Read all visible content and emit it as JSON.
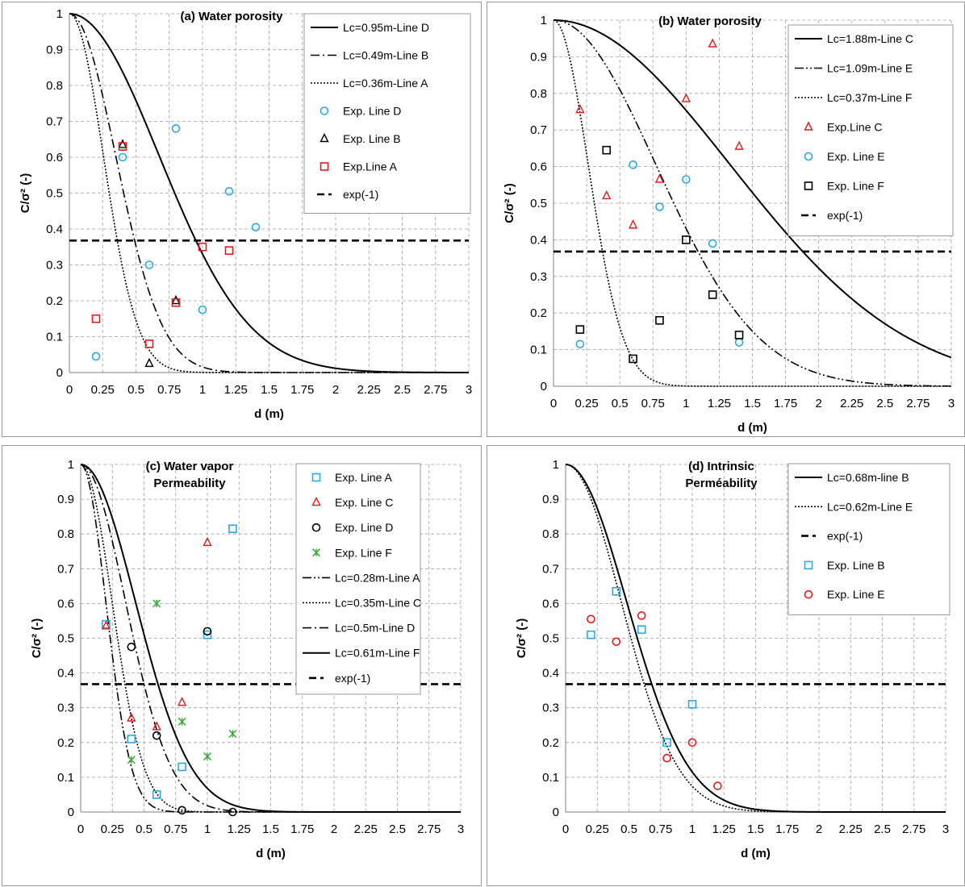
{
  "charts": [
    {
      "id": "a",
      "title_lines": [
        "(a) Water porosity"
      ],
      "chart_data": {
        "type": "line",
        "xlabel": "d (m)",
        "ylabel": "C/σ² (-)",
        "xlim": [
          0,
          3
        ],
        "ylim": [
          0,
          1
        ],
        "xticks": [
          "0",
          "0.25",
          "0.5",
          "0.75",
          "1",
          "1.25",
          "1.5",
          "1.75",
          "2",
          "2.25",
          "2.5",
          "2.75",
          "3"
        ],
        "yticks": [
          "0",
          "0.1",
          "0.2",
          "0.3",
          "0.4",
          "0.5",
          "0.6",
          "0.7",
          "0.8",
          "0.9",
          "1"
        ],
        "grid": true,
        "legend_position": "top-right",
        "curves": [
          {
            "name": "Lc=0.95m-Line D",
            "lc": 0.95,
            "color": "#000000",
            "style": "solid"
          },
          {
            "name": "Lc=0.49m-Line B",
            "lc": 0.49,
            "color": "#000000",
            "style": "dashdot"
          },
          {
            "name": "Lc=0.36m-Line A",
            "lc": 0.36,
            "color": "#000000",
            "style": "dotted"
          }
        ],
        "points": [
          {
            "name": "Exp. Line D",
            "marker": "circle",
            "color": "#29a9e0",
            "x": [
              0.2,
              0.4,
              0.6,
              0.8,
              1.0,
              1.2,
              1.4
            ],
            "y": [
              0.045,
              0.6,
              0.3,
              0.68,
              0.175,
              0.505,
              0.405
            ]
          },
          {
            "name": "Exp. Line B",
            "marker": "triangle",
            "color": "#000000",
            "x": [
              0.4,
              0.6,
              0.8
            ],
            "y": [
              0.635,
              0.025,
              0.2
            ]
          },
          {
            "name": "Exp.Line A",
            "marker": "square",
            "color": "#e41a1c",
            "x": [
              0.2,
              0.4,
              0.6,
              0.8,
              1.0,
              1.2
            ],
            "y": [
              0.15,
              0.63,
              0.08,
              0.195,
              0.35,
              0.34
            ]
          }
        ],
        "reference": {
          "name": "exp(-1)",
          "y": 0.3679
        }
      }
    },
    {
      "id": "b",
      "title_lines": [
        "(b) Water porosity"
      ],
      "chart_data": {
        "type": "line",
        "xlabel": "d (m)",
        "ylabel": "C/σ² (-)",
        "xlim": [
          0,
          3
        ],
        "ylim": [
          0,
          1
        ],
        "xticks": [
          "0",
          "0.25",
          "0.5",
          "0.75",
          "1",
          "1.25",
          "1.5",
          "1.75",
          "2",
          "2.25",
          "2.5",
          "2.75",
          "3"
        ],
        "yticks": [
          "0",
          "0.1",
          "0.2",
          "0.3",
          "0.4",
          "0.5",
          "0.6",
          "0.7",
          "0.8",
          "0.9",
          "1"
        ],
        "grid": true,
        "legend_position": "top-right",
        "curves": [
          {
            "name": "Lc=1.88m-Line C",
            "lc": 1.88,
            "color": "#000000",
            "style": "solid"
          },
          {
            "name": "Lc=1.09m-Line E",
            "lc": 1.09,
            "color": "#000000",
            "style": "dashdotdot"
          },
          {
            "name": "Lc=0.37m-Line F",
            "lc": 0.37,
            "color": "#000000",
            "style": "dotted"
          }
        ],
        "points": [
          {
            "name": "Exp.Line C",
            "marker": "triangle",
            "color": "#e41a1c",
            "x": [
              0.2,
              0.4,
              0.6,
              0.8,
              1.0,
              1.2,
              1.4
            ],
            "y": [
              0.755,
              0.52,
              0.44,
              0.565,
              0.785,
              0.935,
              0.655
            ]
          },
          {
            "name": "Exp. Line E",
            "marker": "circle",
            "color": "#29a9e0",
            "x": [
              0.2,
              0.6,
              0.8,
              1.0,
              1.2,
              1.4
            ],
            "y": [
              0.115,
              0.605,
              0.49,
              0.565,
              0.39,
              0.12
            ]
          },
          {
            "name": "Exp. Line F",
            "marker": "square",
            "color": "#000000",
            "x": [
              0.2,
              0.4,
              0.6,
              0.8,
              1.0,
              1.2,
              1.4
            ],
            "y": [
              0.155,
              0.645,
              0.075,
              0.18,
              0.4,
              0.25,
              0.14
            ]
          }
        ],
        "reference": {
          "name": "exp(-1)",
          "y": 0.3679
        }
      }
    },
    {
      "id": "c",
      "title_lines": [
        "(c) Water vapor",
        "Permeability"
      ],
      "chart_data": {
        "type": "line",
        "xlabel": "d (m)",
        "ylabel": "C/σ² (-)",
        "xlim": [
          0,
          3
        ],
        "ylim": [
          0,
          1
        ],
        "xticks": [
          "0",
          "0.25",
          "0.5",
          "0.75",
          "1",
          "1.25",
          "1.5",
          "1.75",
          "2",
          "2.25",
          "2.5",
          "2.75",
          "3"
        ],
        "yticks": [
          "0",
          "0.1",
          "0.2",
          "0.3",
          "0.4",
          "0.5",
          "0.6",
          "0.7",
          "0.8",
          "0.9",
          "1"
        ],
        "grid": true,
        "legend_position": "top-right",
        "points": [
          {
            "name": "Exp. Line A",
            "marker": "square",
            "color": "#29a9e0",
            "x": [
              0.2,
              0.4,
              0.6,
              0.8,
              1.0,
              1.2
            ],
            "y": [
              0.54,
              0.21,
              0.05,
              0.13,
              0.51,
              0.815
            ]
          },
          {
            "name": "Exp. Line C",
            "marker": "triangle",
            "color": "#e41a1c",
            "x": [
              0.2,
              0.4,
              0.6,
              0.8,
              1.0
            ],
            "y": [
              0.535,
              0.27,
              0.245,
              0.315,
              0.775
            ]
          },
          {
            "name": "Exp. Line D",
            "marker": "circle",
            "color": "#000000",
            "x": [
              0.4,
              0.6,
              0.8,
              1.0,
              1.2
            ],
            "y": [
              0.475,
              0.22,
              0.005,
              0.52,
              0.0
            ]
          },
          {
            "name": "Exp. Line F",
            "marker": "star",
            "color": "#3aa83a",
            "x": [
              0.4,
              0.6,
              0.8,
              1.0,
              1.2
            ],
            "y": [
              0.15,
              0.6,
              0.26,
              0.16,
              0.225
            ]
          }
        ],
        "curves": [
          {
            "name": "Lc=0.28m-Line A",
            "lc": 0.28,
            "color": "#000000",
            "style": "dashdotdot"
          },
          {
            "name": "Lc=0.35m-Line C",
            "lc": 0.35,
            "color": "#000000",
            "style": "dotted"
          },
          {
            "name": "Lc=0.5m-Line D",
            "lc": 0.5,
            "color": "#000000",
            "style": "dashdot"
          },
          {
            "name": "Lc=0.61m-Line F",
            "lc": 0.61,
            "color": "#000000",
            "style": "solid"
          }
        ],
        "reference": {
          "name": "exp(-1)",
          "y": 0.3679
        }
      }
    },
    {
      "id": "d",
      "title_lines": [
        "(d) Intrinsic",
        "Perméability"
      ],
      "chart_data": {
        "type": "line",
        "xlabel": "d (m)",
        "ylabel": "C/σ² (-)",
        "xlim": [
          0,
          3
        ],
        "ylim": [
          0,
          1
        ],
        "xticks": [
          "0",
          "0.25",
          "0.5",
          "0.75",
          "1",
          "1.25",
          "1.5",
          "1.75",
          "2",
          "2.25",
          "2.5",
          "2.75",
          "3"
        ],
        "yticks": [
          "0",
          "0.1",
          "0.2",
          "0.3",
          "0.4",
          "0.5",
          "0.6",
          "0.7",
          "0.8",
          "0.9",
          "1"
        ],
        "grid": true,
        "legend_position": "top-right",
        "curves": [
          {
            "name": "Lc=0.68m-line B",
            "lc": 0.68,
            "color": "#000000",
            "style": "solid"
          },
          {
            "name": "Lc=0.62m-Line E",
            "lc": 0.62,
            "color": "#000000",
            "style": "dotted"
          }
        ],
        "reference": {
          "name": "exp(-1)",
          "y": 0.3679
        },
        "points": [
          {
            "name": "Exp. Line B",
            "marker": "square",
            "color": "#29a9e0",
            "x": [
              0.2,
              0.4,
              0.6,
              0.8,
              1.0
            ],
            "y": [
              0.51,
              0.635,
              0.525,
              0.2,
              0.31
            ]
          },
          {
            "name": "Exp. Line E",
            "marker": "circle",
            "color": "#e41a1c",
            "x": [
              0.2,
              0.4,
              0.6,
              0.8,
              1.0,
              1.2
            ],
            "y": [
              0.555,
              0.49,
              0.565,
              0.155,
              0.2,
              0.075
            ]
          }
        ]
      }
    }
  ]
}
